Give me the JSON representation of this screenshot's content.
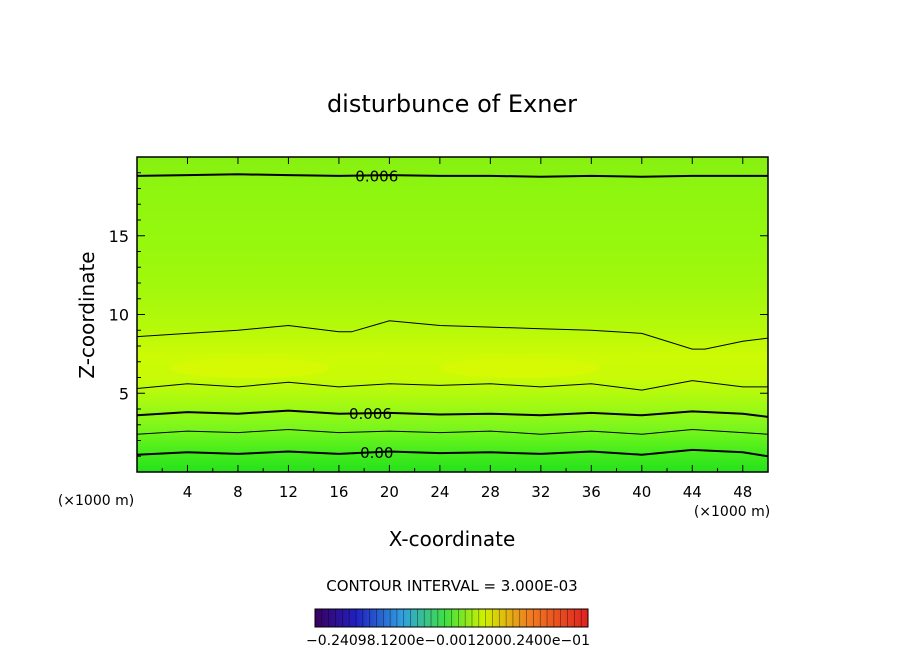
{
  "chart_data": {
    "type": "contour",
    "title": "disturbunce of Exner",
    "xlabel": "X-coordinate",
    "ylabel": "Z-coordinate",
    "x_unit_label": "(×1000 m)",
    "x_unit_label_right": "(×1000 m)",
    "xlim": [
      0,
      50
    ],
    "ylim": [
      0,
      20
    ],
    "x_ticks": [
      4,
      8,
      12,
      16,
      20,
      24,
      28,
      32,
      36,
      40,
      44,
      48
    ],
    "y_ticks": [
      5,
      10,
      15
    ],
    "contour_interval_text": "CONTOUR INTERVAL = 3.000E-03",
    "colorbar_ticks_text": "−0.24098.1200e−0.0012000.2400e−01",
    "contours": [
      {
        "label": "0.00",
        "bold": true,
        "x": [
          0,
          4,
          8,
          12,
          16,
          20,
          24,
          28,
          32,
          36,
          40,
          44,
          48,
          50
        ],
        "z": [
          1.1,
          1.25,
          1.15,
          1.3,
          1.15,
          1.3,
          1.2,
          1.25,
          1.15,
          1.3,
          1.1,
          1.4,
          1.25,
          1.0
        ]
      },
      {
        "label": "",
        "bold": false,
        "x": [
          0,
          4,
          8,
          12,
          16,
          20,
          24,
          28,
          32,
          36,
          40,
          44,
          48,
          50
        ],
        "z": [
          2.4,
          2.6,
          2.5,
          2.7,
          2.5,
          2.6,
          2.5,
          2.6,
          2.4,
          2.6,
          2.4,
          2.7,
          2.5,
          2.4
        ]
      },
      {
        "label": "0.006",
        "bold": true,
        "x": [
          0,
          4,
          8,
          12,
          16,
          20,
          24,
          28,
          32,
          36,
          40,
          44,
          48,
          50
        ],
        "z": [
          3.6,
          3.8,
          3.7,
          3.9,
          3.7,
          3.75,
          3.65,
          3.7,
          3.6,
          3.75,
          3.6,
          3.85,
          3.7,
          3.5
        ]
      },
      {
        "label": "",
        "bold": false,
        "x": [
          0,
          4,
          8,
          12,
          16,
          20,
          24,
          28,
          32,
          36,
          40,
          44,
          48,
          50
        ],
        "z": [
          5.3,
          5.6,
          5.4,
          5.7,
          5.4,
          5.6,
          5.5,
          5.6,
          5.4,
          5.6,
          5.2,
          5.8,
          5.4,
          5.4
        ]
      },
      {
        "label": "",
        "bold": false,
        "x": [
          0,
          4,
          8,
          12,
          16,
          17,
          20,
          24,
          28,
          32,
          36,
          40,
          44,
          45,
          48,
          50
        ],
        "z": [
          8.6,
          8.8,
          9.0,
          9.3,
          8.9,
          8.9,
          9.6,
          9.3,
          9.2,
          9.1,
          9.0,
          8.8,
          7.8,
          7.8,
          8.3,
          8.5
        ]
      },
      {
        "label": "0.006",
        "bold": true,
        "x": [
          0,
          4,
          8,
          12,
          16,
          20,
          24,
          28,
          32,
          36,
          40,
          44,
          48,
          50
        ],
        "z": [
          18.8,
          18.85,
          18.9,
          18.85,
          18.8,
          18.85,
          18.8,
          18.8,
          18.75,
          18.8,
          18.75,
          18.8,
          18.8,
          18.8
        ]
      }
    ]
  }
}
